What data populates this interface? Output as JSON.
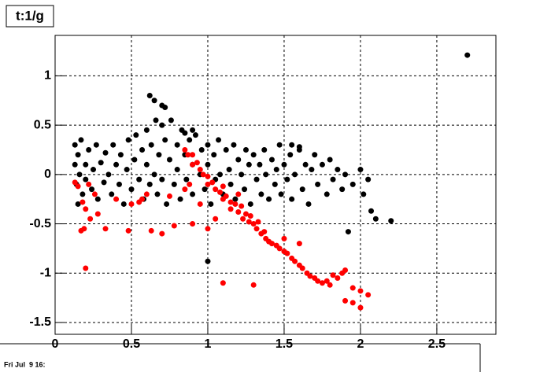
{
  "chart_data": {
    "type": "scatter",
    "title": "t:1/g",
    "footer": "Fri Jul  9 16:",
    "xlim": [
      0,
      2.887
    ],
    "ylim": [
      -1.62,
      1.41
    ],
    "xticks": [
      0,
      0.5,
      1,
      1.5,
      2,
      2.5
    ],
    "yticks": [
      -1.5,
      -1,
      -0.5,
      0,
      0.5,
      1
    ],
    "grid": true,
    "series": [
      {
        "color": "#000000",
        "x": [
          0.13,
          0.13,
          0.14,
          0.15,
          0.15,
          0.16,
          0.17,
          0.18,
          0.2,
          0.2,
          0.22,
          0.24,
          0.25,
          0.27,
          0.28,
          0.3,
          0.32,
          0.33,
          0.35,
          0.37,
          0.38,
          0.4,
          0.42,
          0.43,
          0.45,
          0.47,
          0.48,
          0.5,
          0.52,
          0.53,
          0.55,
          0.57,
          0.58,
          0.6,
          0.6,
          0.62,
          0.63,
          0.65,
          0.66,
          0.67,
          0.68,
          0.7,
          0.7,
          0.72,
          0.73,
          0.75,
          0.76,
          0.78,
          0.8,
          0.8,
          0.82,
          0.83,
          0.85,
          0.86,
          0.88,
          0.9,
          0.9,
          0.92,
          0.95,
          0.96,
          0.98,
          1.0,
          1.0,
          1.02,
          1.04,
          1.05,
          1.07,
          1.08,
          1.1,
          1.12,
          1.14,
          1.15,
          1.17,
          1.18,
          1.2,
          1.22,
          1.24,
          1.25,
          1.27,
          1.28,
          1.3,
          1.32,
          1.34,
          1.35,
          1.37,
          1.38,
          1.4,
          1.42,
          1.44,
          1.45,
          1.47,
          1.48,
          1.5,
          1.52,
          1.54,
          1.55,
          1.57,
          1.6,
          1.62,
          1.64,
          1.66,
          1.68,
          1.7,
          1.72,
          1.75,
          1.78,
          1.8,
          1.82,
          1.85,
          1.88,
          1.9,
          1.95,
          2.0,
          2.7,
          0.62,
          0.65,
          0.7,
          0.72,
          1.0,
          1.92,
          2.1,
          2.2,
          2.07,
          2.02,
          2.05,
          0.85,
          0.9,
          1.55,
          1.6
        ],
        "y": [
          0.3,
          0.1,
          -0.1,
          0.2,
          -0.3,
          0.0,
          0.35,
          -0.2,
          0.1,
          -0.05,
          0.25,
          -0.15,
          0.05,
          0.3,
          -0.25,
          0.12,
          -0.08,
          0.22,
          0.0,
          -0.2,
          0.3,
          0.1,
          -0.1,
          0.2,
          -0.3,
          0.05,
          0.35,
          -0.15,
          0.15,
          0.4,
          -0.05,
          0.25,
          -0.25,
          0.1,
          0.45,
          -0.1,
          0.3,
          0.0,
          0.55,
          -0.2,
          0.2,
          0.5,
          -0.05,
          0.35,
          -0.3,
          0.15,
          0.55,
          -0.1,
          0.3,
          0.05,
          -0.25,
          0.45,
          0.2,
          -0.05,
          0.35,
          0.1,
          -0.2,
          0.4,
          0.0,
          0.25,
          -0.15,
          0.3,
          0.1,
          -0.3,
          0.2,
          -0.05,
          0.35,
          0.0,
          -0.2,
          0.25,
          0.05,
          -0.1,
          0.3,
          -0.25,
          0.15,
          0.0,
          -0.15,
          0.25,
          0.1,
          -0.3,
          0.2,
          -0.05,
          0.1,
          -0.2,
          0.25,
          0.0,
          -0.25,
          0.15,
          -0.1,
          0.05,
          0.3,
          -0.2,
          0.1,
          -0.05,
          0.2,
          -0.25,
          0.0,
          0.25,
          -0.15,
          0.1,
          -0.3,
          0.05,
          0.2,
          -0.1,
          0.1,
          -0.2,
          0.15,
          -0.05,
          0.05,
          -0.15,
          0.0,
          -0.1,
          0.05,
          1.21,
          0.8,
          0.75,
          0.7,
          0.68,
          -0.88,
          -0.58,
          -0.45,
          -0.47,
          -0.37,
          -0.2,
          -0.05,
          0.42,
          0.45,
          0.3,
          0.28
        ]
      },
      {
        "color": "#ff0000",
        "x": [
          0.13,
          0.15,
          0.18,
          0.2,
          0.23,
          0.26,
          0.17,
          0.19,
          0.2,
          0.28,
          0.33,
          0.4,
          0.48,
          0.55,
          0.57,
          0.6,
          0.63,
          0.7,
          0.75,
          0.78,
          0.85,
          0.88,
          0.9,
          0.95,
          1.0,
          1.1,
          1.3,
          1.05,
          0.22,
          0.5,
          0.85,
          0.87,
          0.9,
          0.9,
          0.93,
          0.95,
          0.97,
          1.0,
          1.0,
          1.03,
          1.05,
          1.08,
          1.1,
          1.1,
          1.12,
          1.15,
          1.15,
          1.18,
          1.2,
          1.22,
          1.23,
          1.25,
          1.27,
          1.28,
          1.3,
          1.32,
          1.33,
          1.35,
          1.37,
          1.38,
          1.4,
          1.42,
          1.45,
          1.47,
          1.5,
          1.52,
          1.55,
          1.57,
          1.6,
          1.62,
          1.65,
          1.67,
          1.7,
          1.72,
          1.75,
          1.78,
          1.8,
          1.82,
          1.85,
          1.88,
          1.9,
          1.9,
          1.95,
          2.0,
          1.95,
          2.0,
          2.05,
          1.6,
          1.5,
          1.2
        ],
        "y": [
          -0.08,
          -0.12,
          -0.28,
          -0.35,
          -0.45,
          -0.2,
          -0.57,
          -0.55,
          -0.95,
          -0.4,
          -0.55,
          -0.25,
          -0.57,
          -0.28,
          -0.25,
          -0.2,
          -0.57,
          -0.6,
          -0.22,
          -0.52,
          -0.15,
          -0.1,
          -0.5,
          -0.3,
          -0.55,
          -1.1,
          -1.12,
          -0.45,
          -0.1,
          -0.3,
          0.25,
          0.2,
          0.2,
          0.1,
          0.12,
          0.05,
          0.0,
          -0.02,
          -0.1,
          -0.08,
          -0.15,
          -0.18,
          -0.12,
          -0.25,
          -0.22,
          -0.28,
          -0.35,
          -0.3,
          -0.38,
          -0.32,
          -0.45,
          -0.4,
          -0.48,
          -0.42,
          -0.5,
          -0.55,
          -0.48,
          -0.6,
          -0.58,
          -0.65,
          -0.68,
          -0.7,
          -0.72,
          -0.75,
          -0.78,
          -0.8,
          -0.85,
          -0.88,
          -0.92,
          -0.95,
          -1.0,
          -1.03,
          -1.05,
          -1.08,
          -1.1,
          -1.08,
          -1.12,
          -1.02,
          -1.05,
          -1.0,
          -0.97,
          -1.28,
          -1.3,
          -1.35,
          -1.15,
          -1.18,
          -1.22,
          -0.7,
          -0.65,
          -0.2
        ]
      }
    ]
  }
}
